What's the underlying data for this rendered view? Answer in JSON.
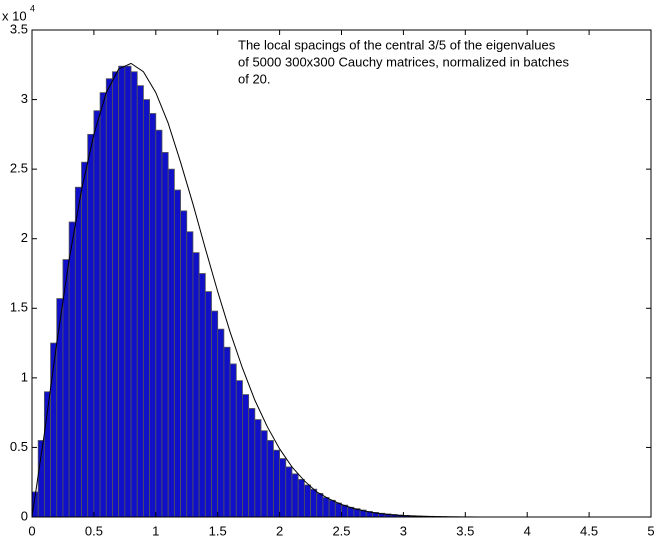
{
  "chart_data": {
    "type": "histogram",
    "y_multiplier": "x 10",
    "y_multiplier_exponent": "4",
    "annotation": [
      "The local spacings of the central 3/5 of the eigenvalues",
      "of 5000 300x300 Cauchy matrices, normalized in batches",
      "of 20."
    ],
    "bins": [
      0,
      0.05,
      0.1,
      0.15,
      0.2,
      0.25,
      0.3,
      0.35,
      0.4,
      0.45,
      0.5,
      0.55,
      0.6,
      0.65,
      0.7,
      0.75,
      0.8,
      0.85,
      0.9,
      0.95,
      1,
      1.05,
      1.1,
      1.15,
      1.2,
      1.25,
      1.3,
      1.35,
      1.4,
      1.45,
      1.5,
      1.55,
      1.6,
      1.65,
      1.7,
      1.75,
      1.8,
      1.85,
      1.9,
      1.95,
      2,
      2.05,
      2.1,
      2.15,
      2.2,
      2.25,
      2.3,
      2.35,
      2.4,
      2.45,
      2.5,
      2.55,
      2.6,
      2.65,
      2.7,
      2.75,
      2.8,
      2.85,
      2.9,
      2.95,
      3,
      3.05,
      3.1,
      3.15,
      3.2,
      3.25,
      3.3,
      3.35,
      3.4,
      3.45,
      3.5,
      3.55,
      3.6
    ],
    "counts": [
      0.18,
      0.55,
      0.9,
      1.25,
      1.57,
      1.85,
      2.12,
      2.37,
      2.55,
      2.75,
      2.92,
      3.05,
      3.15,
      3.2,
      3.24,
      3.24,
      3.2,
      3.1,
      3.0,
      2.9,
      2.78,
      2.62,
      2.5,
      2.35,
      2.2,
      2.05,
      1.9,
      1.75,
      1.62,
      1.48,
      1.35,
      1.22,
      1.1,
      0.98,
      0.88,
      0.78,
      0.7,
      0.62,
      0.55,
      0.48,
      0.42,
      0.36,
      0.31,
      0.27,
      0.23,
      0.2,
      0.17,
      0.14,
      0.12,
      0.1,
      0.085,
      0.07,
      0.06,
      0.05,
      0.04,
      0.033,
      0.027,
      0.022,
      0.018,
      0.014,
      0.011,
      0.009,
      0.007,
      0.006,
      0.005,
      0.004,
      0.003,
      0.002,
      0.002,
      0.001,
      0.001,
      0.001
    ],
    "color": "#1010c8",
    "edge_color": "#555555",
    "overlay": {
      "type": "line",
      "color": "#000000",
      "x": [
        0,
        0.1,
        0.2,
        0.3,
        0.4,
        0.5,
        0.6,
        0.7,
        0.8,
        0.9,
        1,
        1.1,
        1.2,
        1.3,
        1.4,
        1.5,
        1.6,
        1.7,
        1.8,
        1.9,
        2,
        2.1,
        2.2,
        2.3,
        2.4,
        2.5,
        2.6,
        2.7,
        2.8,
        2.9,
        3,
        3.2,
        3.4,
        3.6,
        4,
        5
      ],
      "values": [
        0,
        0.6,
        1.25,
        1.85,
        2.35,
        2.75,
        3.05,
        3.22,
        3.26,
        3.2,
        3.05,
        2.83,
        2.55,
        2.25,
        1.93,
        1.62,
        1.33,
        1.07,
        0.84,
        0.65,
        0.49,
        0.36,
        0.26,
        0.18,
        0.13,
        0.09,
        0.06,
        0.04,
        0.025,
        0.016,
        0.01,
        0.004,
        0.001,
        0,
        0,
        0
      ]
    },
    "xlim": [
      0,
      5
    ],
    "xticks": [
      0,
      0.5,
      1,
      1.5,
      2,
      2.5,
      3,
      3.5,
      4,
      4.5,
      5
    ],
    "ylim": [
      0,
      3.5
    ],
    "yticks": [
      0,
      0.5,
      1,
      1.5,
      2,
      2.5,
      3,
      3.5
    ]
  }
}
